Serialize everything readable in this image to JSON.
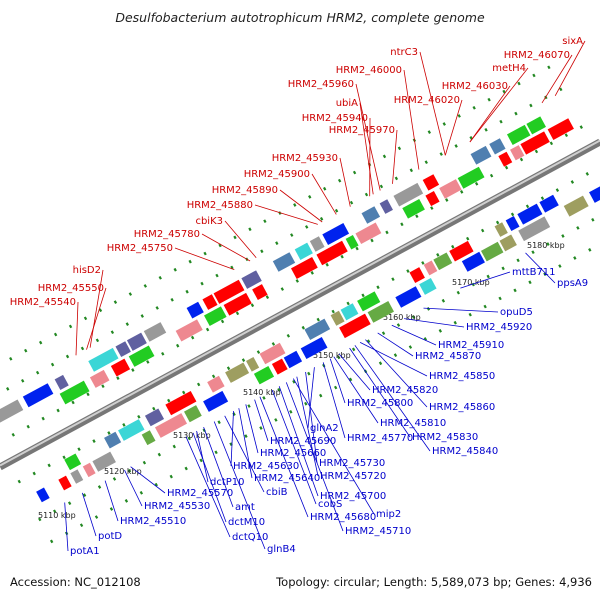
{
  "title": "Desulfobacterium autotrophicum HRM2, complete genome",
  "footer": {
    "accession": "Accession: NC_012108",
    "topology": "Topology: circular; Length: 5,589,073 bp; Genes: 4,936"
  },
  "colors": {
    "forward_label": "#cc0000",
    "reverse_label": "#0000cc",
    "backbone": "#999999",
    "tick": "#228822"
  },
  "scale_labels": [
    "5110 kbp",
    "5120 kbp",
    "5130 kbp",
    "5140 kbp",
    "5150 kbp",
    "5160 kbp",
    "5170 kbp",
    "5180 kbp"
  ],
  "forward_labels": [
    "HRM2_45540",
    "HRM2_45550",
    "hisD2",
    "HRM2_45750",
    "HRM2_45780",
    "cbiK3",
    "HRM2_45880",
    "HRM2_45890",
    "HRM2_45900",
    "HRM2_45930",
    "HRM2_45970",
    "HRM2_45940",
    "ubiA",
    "HRM2_45960",
    "HRM2_46000",
    "ntrC3",
    "HRM2_46020",
    "HRM2_46030",
    "metH4",
    "HRM2_46070",
    "sixA"
  ],
  "reverse_labels": [
    "potA1",
    "potD",
    "HRM2_45510",
    "HRM2_45530",
    "HRM2_45570",
    "dctQ10",
    "dctM10",
    "dctP10",
    "amt",
    "glnB4",
    "cbiB",
    "HRM2_45630",
    "HRM2_45640",
    "HRM2_45660",
    "HRM2_45680",
    "HRM2_45690",
    "cobS",
    "HRM2_45700",
    "HRM2_45710",
    "mip2",
    "HRM2_45720",
    "HRM2_45730",
    "glnA2",
    "HRM2_45770",
    "HRM2_45800",
    "HRM2_45810",
    "HRM2_45820",
    "HRM2_45830",
    "HRM2_45840",
    "HRM2_45850",
    "HRM2_45860",
    "HRM2_45870",
    "HRM2_45910",
    "HRM2_45920",
    "opuD5",
    "mttB711",
    "ppsA9"
  ]
}
